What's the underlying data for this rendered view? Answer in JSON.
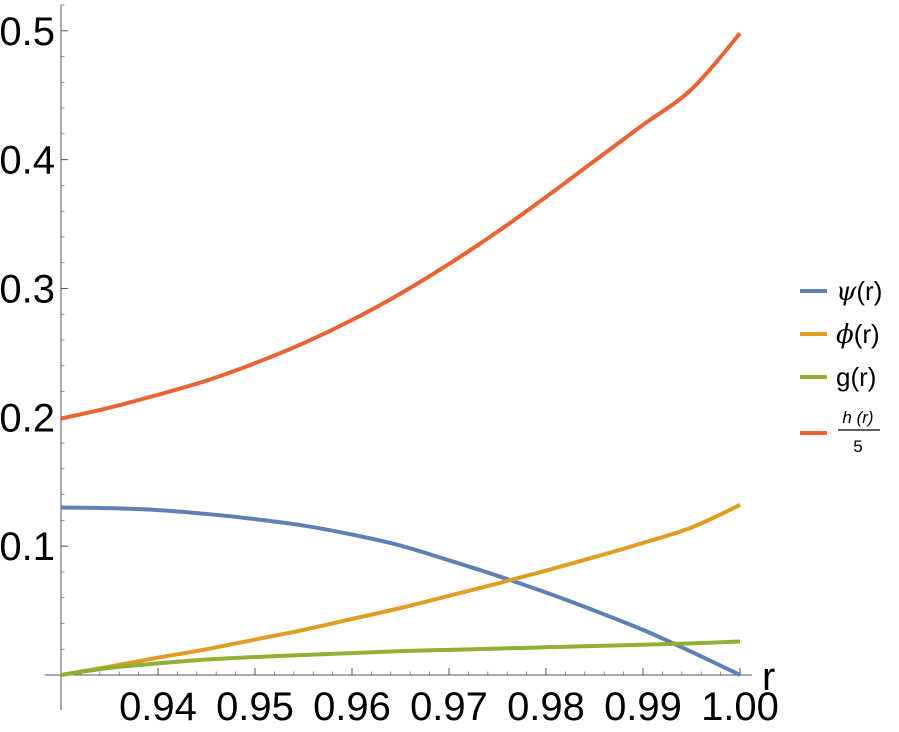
{
  "chart_data": {
    "type": "line",
    "xlabel": "r",
    "ylabel": "",
    "xlim": [
      0.93,
      1.0
    ],
    "ylim": [
      0.0,
      0.52
    ],
    "x_ticks": [
      0.94,
      0.95,
      0.96,
      0.97,
      0.98,
      0.99,
      1.0
    ],
    "x_tick_labels": [
      "0.94",
      "0.95",
      "0.96",
      "0.97",
      "0.98",
      "0.99",
      "1.00"
    ],
    "y_ticks": [
      0.1,
      0.2,
      0.3,
      0.4,
      0.5
    ],
    "y_tick_labels": [
      "0.1",
      "0.2",
      "0.3",
      "0.4",
      "0.5"
    ],
    "grid": false,
    "legend_position": "right",
    "x": [
      0.93,
      0.935,
      0.94,
      0.945,
      0.95,
      0.955,
      0.96,
      0.965,
      0.97,
      0.975,
      0.98,
      0.985,
      0.99,
      0.995,
      1.0
    ],
    "series": [
      {
        "name_prefix": "ψ",
        "name_suffix": "(r)",
        "color": "#5e81b5",
        "values": [
          0.13,
          0.1295,
          0.128,
          0.125,
          0.121,
          0.116,
          0.109,
          0.1005,
          0.089,
          0.077,
          0.064,
          0.05,
          0.035,
          0.018,
          0.0
        ]
      },
      {
        "name_prefix": "ϕ",
        "name_suffix": "(r)",
        "color": "#e19c24",
        "values": [
          0.0,
          0.0065,
          0.0135,
          0.02,
          0.0275,
          0.035,
          0.0435,
          0.052,
          0.0615,
          0.071,
          0.081,
          0.0915,
          0.1025,
          0.1145,
          0.132
        ]
      },
      {
        "name": "g(r)",
        "color": "#8fb032",
        "values": [
          0.0,
          0.0055,
          0.009,
          0.012,
          0.014,
          0.0155,
          0.017,
          0.0185,
          0.0195,
          0.0205,
          0.0215,
          0.0225,
          0.0235,
          0.0245,
          0.026
        ]
      },
      {
        "name_numerator": "h (r)",
        "name_denominator": "5",
        "color": "#eb6235",
        "values": [
          0.199,
          0.2075,
          0.2175,
          0.2285,
          0.242,
          0.2575,
          0.2755,
          0.296,
          0.319,
          0.344,
          0.371,
          0.399,
          0.427,
          0.4545,
          0.498
        ]
      }
    ]
  }
}
